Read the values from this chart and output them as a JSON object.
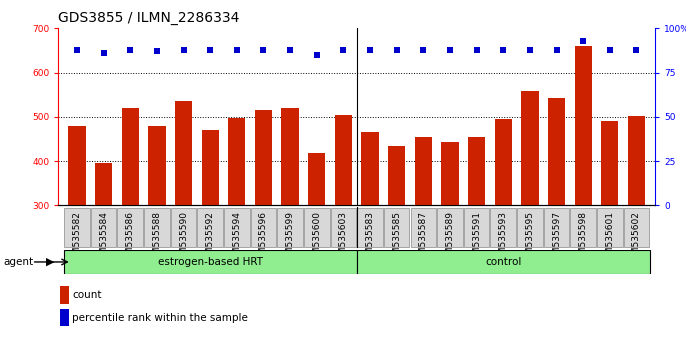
{
  "title": "GDS3855 / ILMN_2286334",
  "categories": [
    "GSM535582",
    "GSM535584",
    "GSM535586",
    "GSM535588",
    "GSM535590",
    "GSM535592",
    "GSM535594",
    "GSM535596",
    "GSM535599",
    "GSM535600",
    "GSM535603",
    "GSM535583",
    "GSM535585",
    "GSM535587",
    "GSM535589",
    "GSM535591",
    "GSM535593",
    "GSM535595",
    "GSM535597",
    "GSM535598",
    "GSM535601",
    "GSM535602"
  ],
  "bar_values": [
    480,
    395,
    520,
    480,
    535,
    470,
    498,
    515,
    520,
    418,
    503,
    465,
    435,
    455,
    443,
    455,
    495,
    558,
    543,
    660,
    490,
    502
  ],
  "percentile_values": [
    88,
    86,
    88,
    87,
    88,
    88,
    88,
    88,
    88,
    85,
    88,
    88,
    88,
    88,
    88,
    88,
    88,
    88,
    88,
    93,
    88,
    88
  ],
  "groups": [
    {
      "label": "estrogen-based HRT",
      "start": 0,
      "end": 11,
      "color": "#90EE90"
    },
    {
      "label": "control",
      "start": 11,
      "end": 22,
      "color": "#90EE90"
    }
  ],
  "bar_color": "#CC2200",
  "dot_color": "#0000CC",
  "ylim_left": [
    300,
    700
  ],
  "ylim_right": [
    0,
    100
  ],
  "yticks_left": [
    300,
    400,
    500,
    600,
    700
  ],
  "yticks_right": [
    0,
    25,
    50,
    75,
    100
  ],
  "grid_values": [
    400,
    500,
    600
  ],
  "title_fontsize": 10,
  "tick_fontsize": 6.5,
  "label_fontsize": 7.5,
  "background_color": "#ffffff",
  "agent_label": "agent",
  "legend_count_label": "count",
  "legend_pct_label": "percentile rank within the sample",
  "n_group1": 11,
  "n_total": 22
}
